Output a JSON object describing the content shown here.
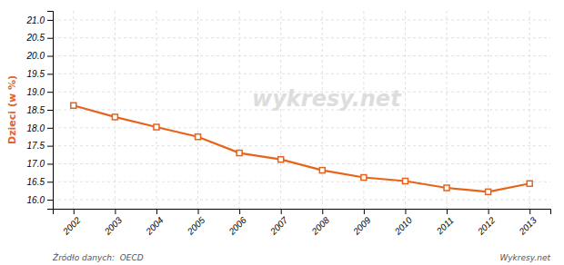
{
  "chart_data": {
    "type": "line",
    "x": [
      2002,
      2003,
      2004,
      2005,
      2006,
      2007,
      2008,
      2009,
      2010,
      2011,
      2012,
      2013
    ],
    "values": [
      18.62,
      18.3,
      18.02,
      17.75,
      17.3,
      17.12,
      16.82,
      16.62,
      16.52,
      16.33,
      16.22,
      16.45
    ],
    "color": "#e8621a",
    "marker": "square",
    "y_label": "Dzieci (w %)",
    "xlim": [
      2001.5,
      2013.5
    ],
    "xticks": [
      2002,
      2003,
      2004,
      2005,
      2006,
      2007,
      2008,
      2009,
      2010,
      2011,
      2012,
      2013
    ],
    "ylim": [
      15.75,
      21.25
    ],
    "yticks": [
      {
        "value": 16.0,
        "label": "16.0"
      },
      16.5,
      {
        "value": 17.0,
        "label": "17.0"
      },
      17.5,
      {
        "value": 18.0,
        "label": "18.0"
      },
      18.5,
      {
        "value": 19.0,
        "label": "19.0"
      },
      19.5,
      {
        "value": 20.0,
        "label": "20.0"
      },
      20.5,
      {
        "value": 21.0,
        "label": "21.0"
      }
    ],
    "grid": true,
    "annotations": [
      "wykresy.net",
      "Źródło danych:  OECD",
      "Wykresy.net"
    ]
  }
}
